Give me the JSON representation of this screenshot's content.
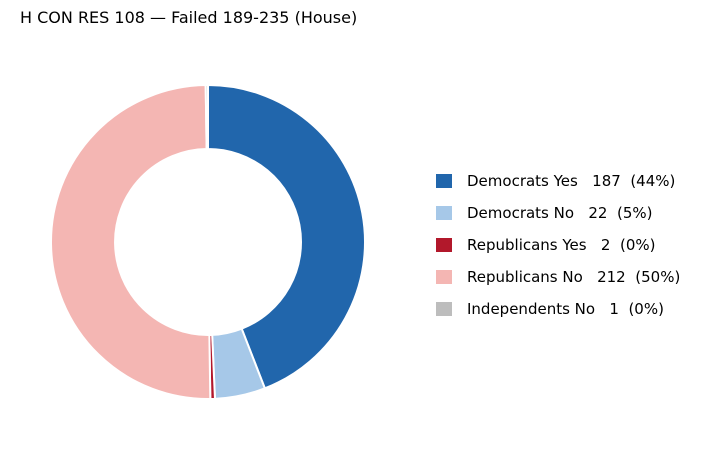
{
  "chart_data": {
    "type": "pie",
    "title": "H CON RES 108 — Failed 189-235 (House)",
    "categories": [
      "Democrats Yes",
      "Democrats No",
      "Republicans Yes",
      "Republicans No",
      "Independents No"
    ],
    "values": [
      187,
      22,
      2,
      212,
      1
    ],
    "colors": [
      "#2166ac",
      "#a6c8e8",
      "#b2182b",
      "#f4b6b3",
      "#bdbdbd"
    ],
    "legend_labels": [
      "Democrats Yes   187  (44%)",
      "Democrats No   22  (5%)",
      "Republicans Yes   2  (0%)",
      "Republicans No   212  (50%)",
      "Independents No   1  (0%)"
    ],
    "legend_position": "right",
    "donut": true,
    "start": "top",
    "direction": "clockwise"
  }
}
